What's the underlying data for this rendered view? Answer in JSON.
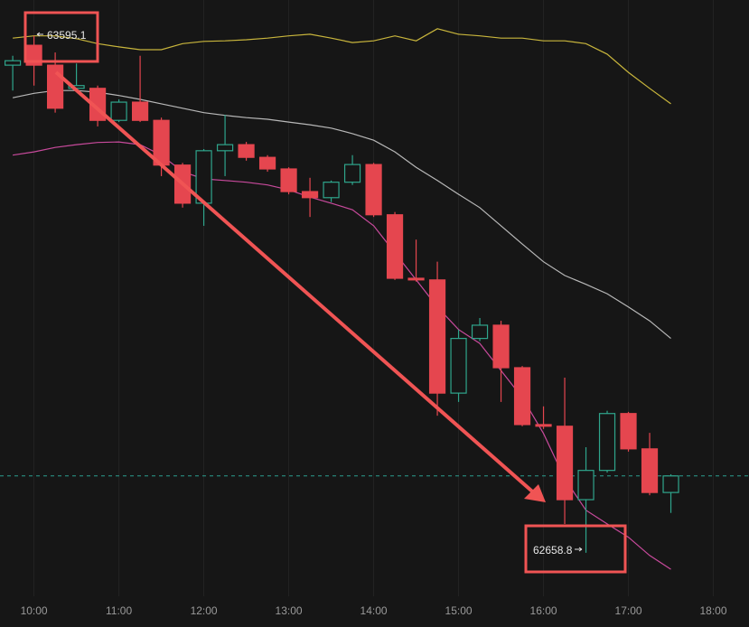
{
  "chart_data": {
    "type": "candlestick",
    "x": [
      9.75,
      10,
      10.25,
      10.5,
      10.75,
      11,
      11.25,
      11.5,
      11.75,
      12,
      12.25,
      12.5,
      12.75,
      13,
      13.25,
      13.5,
      13.75,
      14,
      14.25,
      14.5,
      14.75,
      15,
      15.25,
      15.5,
      15.75,
      16,
      16.25,
      16.5,
      16.75,
      17,
      17.25,
      17.5
    ],
    "open": [
      63542,
      63578,
      63542,
      63500,
      63500,
      63442,
      63475,
      63442,
      63361,
      63292,
      63387,
      63398,
      63375,
      63354,
      63313,
      63302,
      63330,
      63362,
      63271,
      63156,
      63153,
      62948,
      63047,
      63071,
      62994,
      62891,
      62888,
      62755,
      62808,
      62911,
      62847,
      62768
    ],
    "high": [
      63559,
      63595.1,
      63565,
      63545,
      63505,
      63480,
      63559,
      63447,
      63365,
      63390,
      63452,
      63403,
      63379,
      63357,
      63338,
      63333,
      63379,
      63365,
      63276,
      63226,
      63186,
      63063,
      63084,
      63079,
      62997,
      62924,
      62976,
      62850,
      62916,
      62914,
      62876,
      62801
    ],
    "low": [
      63496,
      63505,
      63456,
      63496,
      63431,
      63439,
      63439,
      63341,
      63284,
      63251,
      63341,
      63369,
      63349,
      63308,
      63267,
      63294,
      63325,
      63267,
      63153,
      63150,
      62907,
      62932,
      63042,
      62932,
      62888,
      62883,
      62711,
      62658.8,
      62804,
      62842,
      62763,
      62731
    ],
    "close": [
      63550,
      63542,
      63464,
      63505,
      63442,
      63475,
      63442,
      63361,
      63292,
      63387,
      63398,
      63375,
      63354,
      63313,
      63302,
      63330,
      63362,
      63271,
      63156,
      63153,
      62948,
      63047,
      63071,
      62994,
      62891,
      62888,
      62755,
      62808,
      62911,
      62847,
      62768,
      62798
    ],
    "up_color": "#2fa58c",
    "down_color": "#e5464f",
    "lines": [
      {
        "color": "#c8b53c",
        "values": [
          63591,
          63595,
          63595,
          63590,
          63581,
          63575,
          63570,
          63570,
          63581,
          63585,
          63586,
          63588,
          63591,
          63595,
          63598,
          63591,
          63583,
          63586,
          63595,
          63586,
          63608,
          63598,
          63595,
          63591,
          63591,
          63586,
          63586,
          63581,
          63562,
          63529,
          63500,
          63472
        ]
      },
      {
        "color": "#b8b8b8",
        "values": [
          63483,
          63491,
          63496,
          63496,
          63493,
          63487,
          63480,
          63472,
          63464,
          63456,
          63451,
          63447,
          63444,
          63439,
          63434,
          63428,
          63418,
          63406,
          63385,
          63357,
          63333,
          63308,
          63284,
          63251,
          63218,
          63186,
          63161,
          63145,
          63128,
          63104,
          63079,
          63047
        ]
      },
      {
        "color": "#c84a9c",
        "values": [
          63379,
          63385,
          63393,
          63398,
          63402,
          63403,
          63398,
          63379,
          63349,
          63336,
          63333,
          63330,
          63325,
          63316,
          63303,
          63292,
          63280,
          63251,
          63202,
          63153,
          63104,
          63063,
          63038,
          62989,
          62940,
          62875,
          62793,
          62736,
          62711,
          62687,
          62654,
          62629
        ]
      }
    ],
    "last_price": 62798,
    "last_price_color": "#2a9d8f",
    "high_label": 63595.1,
    "low_label": 62658.8,
    "xlim": [
      9.6,
      18.42
    ],
    "ylim": [
      62580,
      63660
    ],
    "xticks": [
      {
        "value": 10,
        "label": "10:00"
      },
      {
        "value": 11,
        "label": "11:00"
      },
      {
        "value": 12,
        "label": "12:00"
      },
      {
        "value": 13,
        "label": "13:00"
      },
      {
        "value": 14,
        "label": "14:00"
      },
      {
        "value": 15,
        "label": "15:00"
      },
      {
        "value": 16,
        "label": "16:00"
      },
      {
        "value": 17,
        "label": "17:00"
      },
      {
        "value": 18,
        "label": "18:00"
      }
    ],
    "grid": true
  }
}
